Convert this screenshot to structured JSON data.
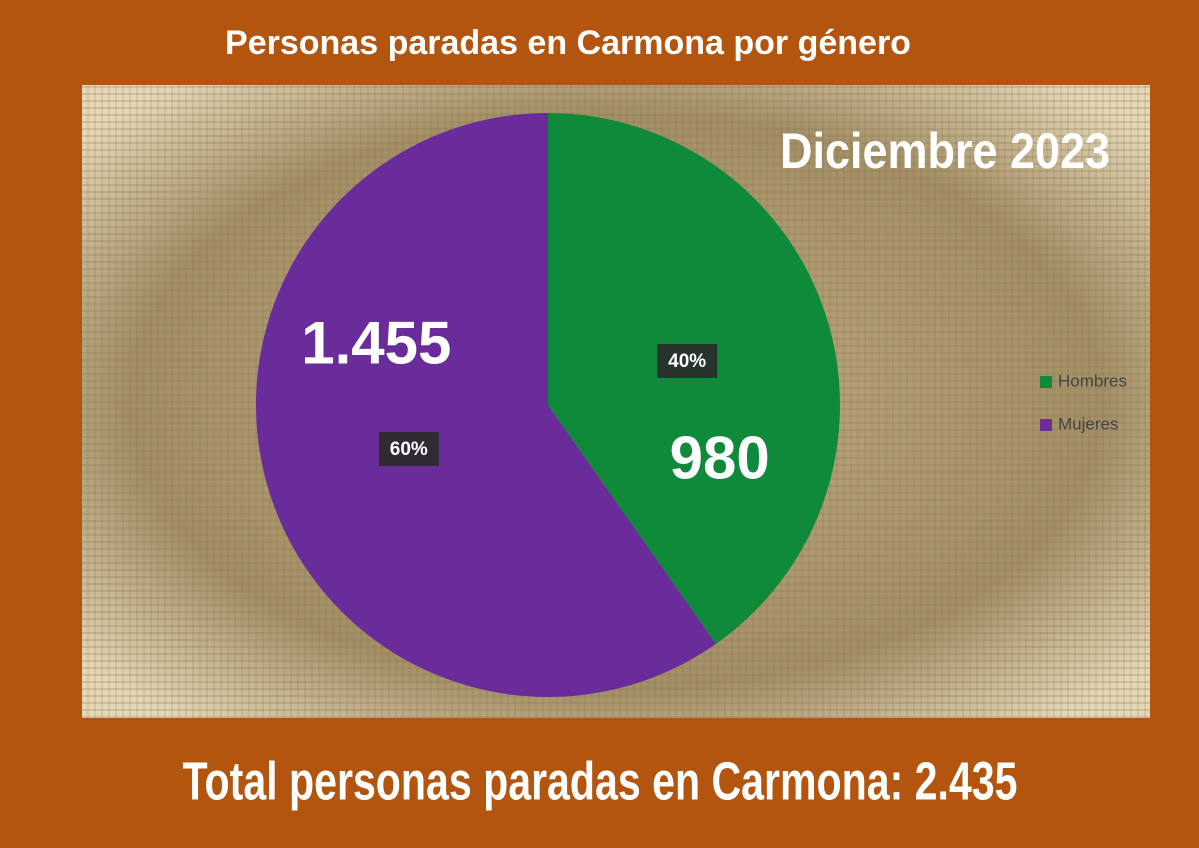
{
  "chart_data": {
    "type": "pie",
    "title": "Personas paradas en Carmona por género",
    "subtitle": "Diciembre 2023",
    "footer": "Total personas paradas en Carmona: 2.435",
    "categories": [
      "Hombres",
      "Mujeres"
    ],
    "values": [
      980,
      1455
    ],
    "value_labels": [
      "980",
      "1.455"
    ],
    "percent_labels": [
      "40%",
      "60%"
    ],
    "colors": [
      "#0f8a3b",
      "#6a2c9b"
    ],
    "legend": "right"
  }
}
